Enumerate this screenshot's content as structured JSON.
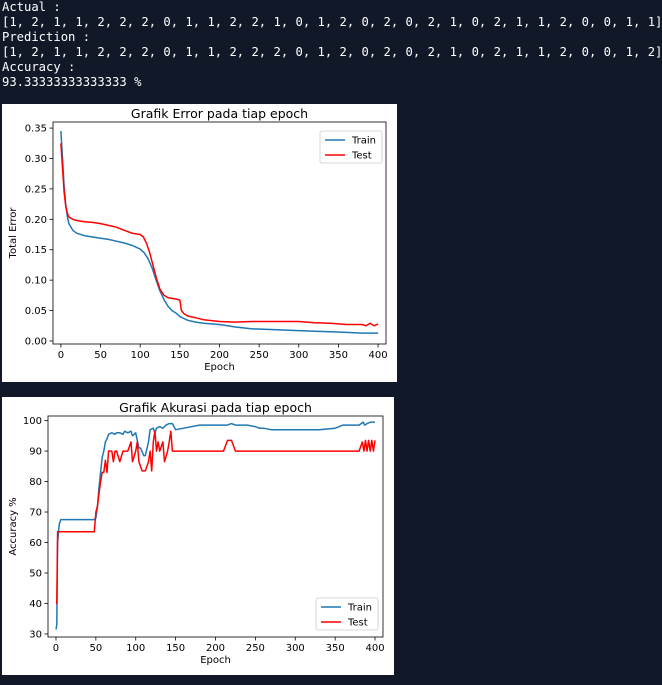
{
  "output": {
    "actual_label": "Actual :",
    "actual_values": "[1, 2, 1, 1, 2, 2, 2, 0, 1, 1, 2, 2, 1, 0, 1, 2, 0, 2, 0, 2, 1, 0, 2, 1, 1, 2, 0, 0, 1, 1]",
    "prediction_label": "Prediction :",
    "prediction_values": "[1, 2, 1, 1, 2, 2, 2, 0, 1, 1, 2, 2, 2, 0, 1, 2, 0, 2, 0, 2, 1, 0, 2, 1, 1, 2, 0, 0, 1, 2]",
    "accuracy_label": "Accuracy :",
    "accuracy_value": "93.33333333333333 %"
  },
  "colors": {
    "background": "#111827",
    "train": "#1f77b4",
    "test": "#ff0000"
  },
  "chart_data": [
    {
      "type": "line",
      "title": "Grafik Error pada tiap epoch",
      "xlabel": "Epoch",
      "ylabel": "Total Error",
      "xlim": [
        -10,
        410
      ],
      "ylim": [
        -0.005,
        0.36
      ],
      "xticks": [
        0,
        50,
        100,
        150,
        200,
        250,
        300,
        350,
        400
      ],
      "yticks": [
        0.0,
        0.05,
        0.1,
        0.15,
        0.2,
        0.25,
        0.3,
        0.35
      ],
      "ytick_labels": [
        "0.00",
        "0.05",
        "0.10",
        "0.15",
        "0.20",
        "0.25",
        "0.30",
        "0.35"
      ],
      "legend": "top-right",
      "grid": false,
      "series": [
        {
          "name": "Train",
          "color": "#1f77b4",
          "x": [
            0,
            2,
            4,
            6,
            8,
            10,
            15,
            20,
            30,
            40,
            50,
            60,
            70,
            80,
            90,
            100,
            105,
            110,
            115,
            120,
            125,
            130,
            135,
            140,
            145,
            150,
            155,
            160,
            170,
            180,
            200,
            220,
            240,
            260,
            280,
            300,
            320,
            340,
            360,
            380,
            400
          ],
          "y": [
            0.345,
            0.3,
            0.255,
            0.225,
            0.205,
            0.193,
            0.182,
            0.177,
            0.173,
            0.171,
            0.169,
            0.167,
            0.164,
            0.161,
            0.157,
            0.151,
            0.145,
            0.135,
            0.12,
            0.1,
            0.082,
            0.068,
            0.057,
            0.05,
            0.046,
            0.04,
            0.037,
            0.034,
            0.031,
            0.029,
            0.027,
            0.023,
            0.02,
            0.019,
            0.018,
            0.017,
            0.016,
            0.015,
            0.014,
            0.013,
            0.013
          ]
        },
        {
          "name": "Test",
          "color": "#ff0000",
          "x": [
            0,
            2,
            4,
            6,
            8,
            10,
            15,
            20,
            30,
            40,
            50,
            60,
            70,
            80,
            90,
            100,
            104,
            108,
            112,
            116,
            120,
            125,
            130,
            135,
            140,
            145,
            150,
            152,
            155,
            160,
            170,
            180,
            200,
            220,
            240,
            260,
            280,
            300,
            320,
            340,
            360,
            380,
            385,
            390,
            395,
            400
          ],
          "y": [
            0.325,
            0.285,
            0.245,
            0.222,
            0.21,
            0.204,
            0.2,
            0.198,
            0.196,
            0.195,
            0.193,
            0.19,
            0.187,
            0.182,
            0.177,
            0.175,
            0.171,
            0.16,
            0.145,
            0.125,
            0.105,
            0.085,
            0.075,
            0.071,
            0.07,
            0.069,
            0.067,
            0.05,
            0.045,
            0.041,
            0.038,
            0.035,
            0.032,
            0.031,
            0.032,
            0.032,
            0.032,
            0.032,
            0.03,
            0.029,
            0.027,
            0.027,
            0.025,
            0.029,
            0.025,
            0.028
          ]
        }
      ]
    },
    {
      "type": "line",
      "title": "Grafik Akurasi pada tiap epoch",
      "xlabel": "Epoch",
      "ylabel": "Accuracy %",
      "xlim": [
        -10,
        410
      ],
      "ylim": [
        29,
        101.5
      ],
      "xticks": [
        0,
        50,
        100,
        150,
        200,
        250,
        300,
        350,
        400
      ],
      "yticks": [
        30,
        40,
        50,
        60,
        70,
        80,
        90,
        100
      ],
      "ytick_labels": [
        "30",
        "40",
        "50",
        "60",
        "70",
        "80",
        "90",
        "100"
      ],
      "legend": "lower-right",
      "grid": false,
      "series": [
        {
          "name": "Train",
          "color": "#1f77b4",
          "x": [
            0,
            1,
            2,
            4,
            6,
            10,
            20,
            30,
            40,
            46,
            48,
            50,
            52,
            54,
            56,
            58,
            60,
            62,
            64,
            66,
            70,
            74,
            76,
            80,
            84,
            86,
            90,
            94,
            96,
            100,
            104,
            106,
            110,
            112,
            116,
            118,
            122,
            124,
            126,
            130,
            134,
            138,
            142,
            146,
            150,
            160,
            180,
            200,
            215,
            220,
            225,
            230,
            240,
            250,
            255,
            260,
            270,
            290,
            310,
            330,
            350,
            360,
            370,
            380,
            385,
            387,
            390,
            395,
            400
          ],
          "y": [
            31.5,
            33,
            60,
            66,
            67.5,
            67.5,
            67.5,
            67.5,
            67.5,
            67.5,
            67.5,
            68,
            72,
            78,
            83,
            88,
            90,
            93,
            94,
            95.5,
            96,
            95.5,
            96,
            96,
            95.5,
            96.5,
            96,
            96.5,
            95,
            96,
            91,
            91,
            88.5,
            88.5,
            93,
            97,
            97.5,
            96,
            97.5,
            98,
            97.5,
            98.5,
            99,
            99,
            97,
            97.5,
            98.5,
            98.5,
            98.5,
            99,
            98.5,
            98.5,
            98.5,
            98,
            97.5,
            97.5,
            97,
            97,
            97,
            97,
            97.5,
            98.5,
            98.5,
            98.5,
            99.5,
            98.5,
            99,
            99.5,
            99.5
          ]
        },
        {
          "name": "Test",
          "color": "#ff0000",
          "x": [
            0,
            1,
            2,
            4,
            10,
            20,
            30,
            40,
            46,
            48,
            50,
            52,
            54,
            56,
            58,
            60,
            62,
            64,
            66,
            70,
            72,
            74,
            76,
            80,
            84,
            86,
            90,
            94,
            96,
            100,
            102,
            104,
            108,
            110,
            112,
            116,
            118,
            120,
            122,
            124,
            126,
            128,
            130,
            134,
            136,
            140,
            142,
            144,
            146,
            150,
            160,
            180,
            200,
            210,
            215,
            220,
            225,
            230,
            240,
            260,
            280,
            300,
            320,
            340,
            360,
            380,
            384,
            386,
            388,
            390,
            392,
            394,
            396,
            398,
            400
          ],
          "y": [
            40,
            40,
            63.5,
            63.5,
            63.5,
            63.5,
            63.5,
            63.5,
            63.5,
            63.5,
            70,
            72,
            76,
            80,
            83,
            83,
            87,
            83,
            90,
            90,
            86.5,
            90,
            90,
            86.5,
            90,
            90,
            90,
            93,
            86.5,
            90,
            93,
            86.5,
            83.5,
            83.5,
            83.5,
            86.5,
            90,
            83.5,
            93,
            96.5,
            90,
            93,
            90,
            93,
            86.5,
            90,
            93,
            96.5,
            90,
            90,
            90,
            90,
            90,
            90,
            93.5,
            93.5,
            90,
            90,
            90,
            90,
            90,
            90,
            90,
            90,
            90,
            90,
            93,
            90,
            93.5,
            90,
            93.5,
            90,
            93.5,
            90,
            93.5
          ]
        }
      ]
    }
  ]
}
